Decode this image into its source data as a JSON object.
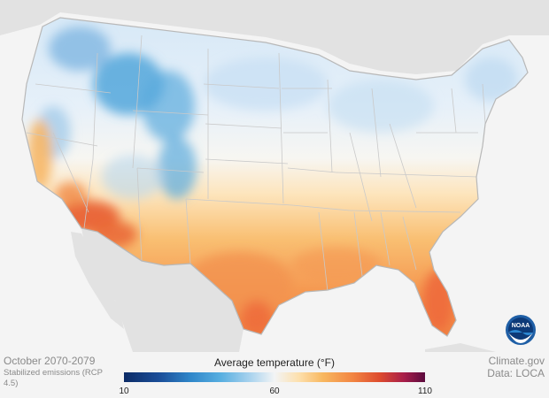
{
  "caption": {
    "period": "October 2070-2079",
    "scenario": "Stabilized emissions (RCP 4.5)"
  },
  "legend": {
    "title": "Average temperature (°F)",
    "min_label": "10",
    "mid_label": "60",
    "max_label": "110",
    "colors": {
      "cold": "#1b4f9a",
      "neutral": "#f2f4f5",
      "hot": "#dd4b2e",
      "hottest": "#5b0b3e"
    }
  },
  "source": {
    "site": "Climate.gov",
    "data": "Data: LOCA"
  },
  "logo": {
    "text": "NOAA"
  },
  "map": {
    "region": "Contiguous United States",
    "variable": "Average temperature",
    "units": "°F"
  }
}
